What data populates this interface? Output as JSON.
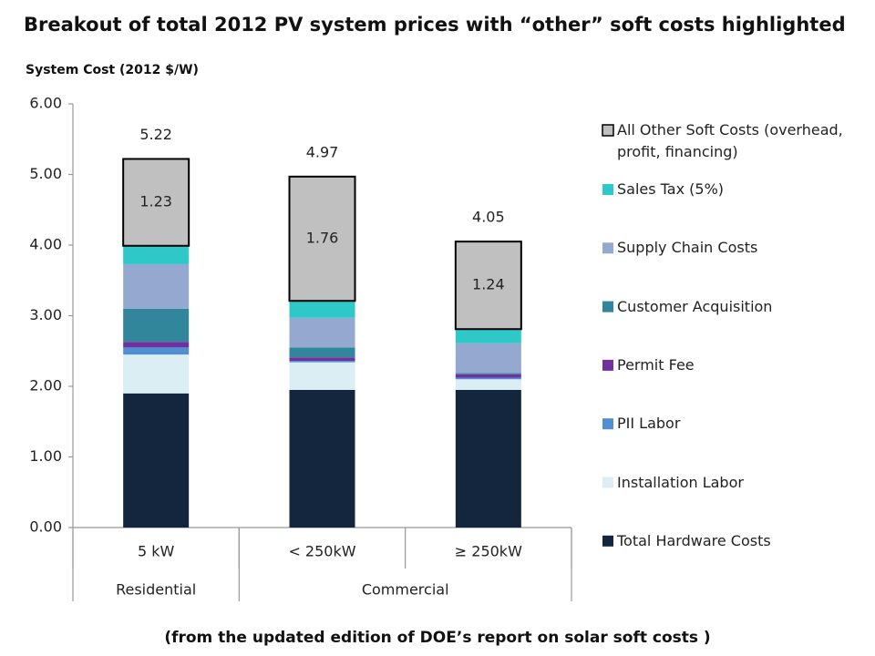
{
  "chart_data": {
    "type": "stacked-bar",
    "title": "Breakout of total 2012 PV system prices with “other” soft costs highlighted",
    "ylabel": "System Cost (2012 $/W)",
    "footnote": "(from the updated edition of DOE’s report on solar soft costs )",
    "category_groups": [
      {
        "name": "Residential",
        "categories": [
          "5 kW"
        ]
      },
      {
        "name": "Commercial",
        "categories": [
          "< 250kW",
          "≥ 250kW"
        ]
      }
    ],
    "series": [
      {
        "name": "Total Hardware Costs",
        "color": "#14253e",
        "values": [
          1.9,
          1.95,
          1.95
        ]
      },
      {
        "name": "Installation Labor",
        "color": "#dbeef4",
        "values": [
          0.55,
          0.39,
          0.15
        ]
      },
      {
        "name": "PII Labor",
        "color": "#4f8fd4",
        "values": [
          0.1,
          0.02,
          0.02
        ]
      },
      {
        "name": "Permit Fee",
        "color": "#7030a0",
        "values": [
          0.08,
          0.05,
          0.05
        ]
      },
      {
        "name": "Customer Acquisition",
        "color": "#31869b",
        "values": [
          0.47,
          0.14,
          0.02
        ]
      },
      {
        "name": "Supply Chain Costs",
        "color": "#95a9d0",
        "values": [
          0.63,
          0.42,
          0.42
        ]
      },
      {
        "name": "Sales Tax (5%)",
        "color": "#2ec8c8",
        "values": [
          0.26,
          0.24,
          0.2
        ]
      },
      {
        "name": "All Other Soft Costs (overhead, profit, financing)",
        "color": "#c0c0c0",
        "values": [
          1.23,
          1.76,
          1.24
        ],
        "outline": "#000000",
        "show_labels": true
      }
    ],
    "totals": [
      5.22,
      4.97,
      4.05
    ],
    "ylim": [
      0,
      6
    ],
    "yticks": [
      {
        "value": 0,
        "label": "0.00"
      },
      {
        "value": 1,
        "label": "1.00"
      },
      {
        "value": 2,
        "label": "2.00"
      },
      {
        "value": 3,
        "label": "3.00"
      },
      {
        "value": 4,
        "label": "4.00"
      },
      {
        "value": 5,
        "label": "5.00"
      },
      {
        "value": 6,
        "label": "6.00"
      }
    ],
    "legend": "right"
  }
}
